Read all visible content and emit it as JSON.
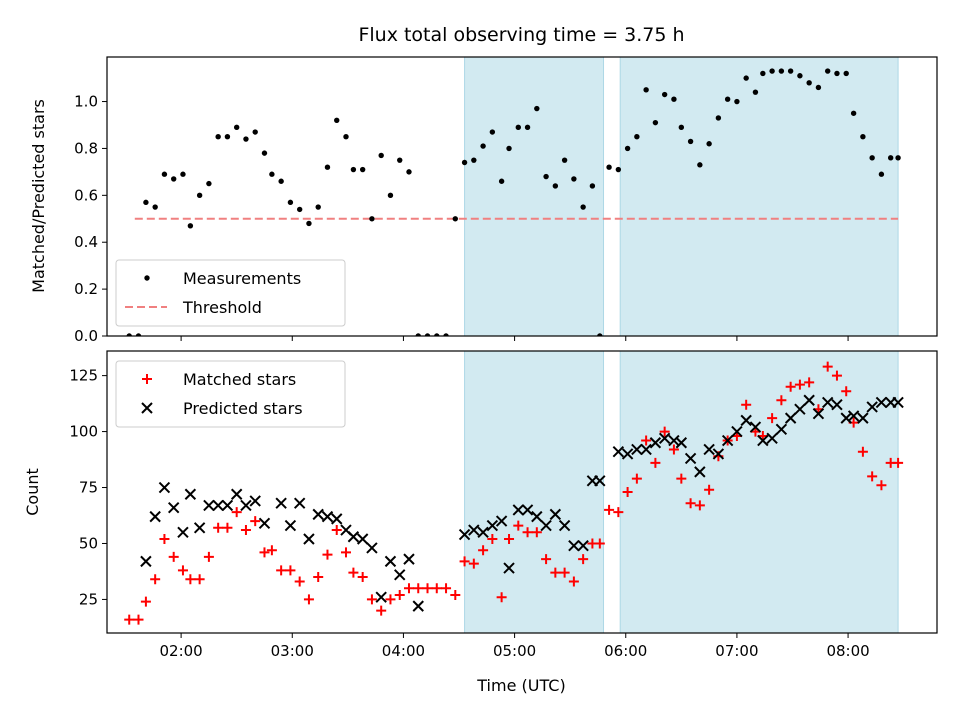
{
  "title": "Flux total observing time = 3.75 h",
  "colors": {
    "shade": "#add8e6",
    "threshold": "#f08080",
    "measurement": "#000000",
    "matched": "#ff0000",
    "predicted": "#000000"
  },
  "chart_data": [
    {
      "type": "scatter",
      "ylabel": "Matched/Predicted stars",
      "ylim": [
        0,
        1.19
      ],
      "yticks": [
        0.0,
        0.2,
        0.4,
        0.6,
        0.8,
        1.0
      ],
      "ytick_labels": [
        "0.0",
        "0.2",
        "0.4",
        "0.6",
        "0.8",
        "1.0"
      ],
      "legend_position": "lower-left",
      "shaded_intervals": [
        [
          "04:33",
          "05:48"
        ],
        [
          "05:57",
          "08:27"
        ]
      ],
      "threshold": {
        "name": "Threshold",
        "value": 0.5,
        "x_range": [
          "01:35",
          "08:27"
        ]
      },
      "series": [
        {
          "name": "Measurements",
          "marker": "dot",
          "x": [
            "01:32",
            "01:37",
            "01:41",
            "01:46",
            "01:51",
            "01:56",
            "02:01",
            "02:05",
            "02:10",
            "02:15",
            "02:20",
            "02:25",
            "02:30",
            "02:35",
            "02:40",
            "02:45",
            "02:49",
            "02:54",
            "02:59",
            "03:04",
            "03:09",
            "03:14",
            "03:19",
            "03:24",
            "03:29",
            "03:33",
            "03:38",
            "03:43",
            "03:48",
            "03:53",
            "03:58",
            "04:03",
            "04:08",
            "04:13",
            "04:18",
            "04:23",
            "04:28",
            "04:33",
            "04:38",
            "04:43",
            "04:48",
            "04:53",
            "04:57",
            "05:02",
            "05:07",
            "05:12",
            "05:17",
            "05:22",
            "05:27",
            "05:32",
            "05:37",
            "05:42",
            "05:46",
            "05:51",
            "05:56",
            "06:01",
            "06:06",
            "06:11",
            "06:16",
            "06:21",
            "06:26",
            "06:30",
            "06:35",
            "06:40",
            "06:45",
            "06:50",
            "06:55",
            "07:00",
            "07:05",
            "07:10",
            "07:14",
            "07:19",
            "07:24",
            "07:29",
            "07:34",
            "07:39",
            "07:44",
            "07:49",
            "07:54",
            "07:59",
            "08:03",
            "08:08",
            "08:13",
            "08:18",
            "08:23",
            "08:27"
          ],
          "y": [
            0.0,
            0.0,
            0.57,
            0.55,
            0.69,
            0.67,
            0.69,
            0.47,
            0.6,
            0.65,
            0.85,
            0.85,
            0.89,
            0.84,
            0.87,
            0.78,
            0.69,
            0.66,
            0.57,
            0.54,
            0.48,
            0.55,
            0.72,
            0.92,
            0.85,
            0.71,
            0.71,
            0.5,
            0.77,
            0.6,
            0.75,
            0.7,
            0.0,
            0.0,
            0.0,
            0.0,
            0.5,
            0.74,
            0.75,
            0.81,
            0.87,
            0.66,
            0.8,
            0.89,
            0.89,
            0.97,
            0.68,
            0.64,
            0.75,
            0.67,
            0.55,
            0.64,
            0.0,
            0.72,
            0.71,
            0.8,
            0.85,
            1.05,
            0.91,
            1.03,
            1.01,
            0.89,
            0.83,
            0.73,
            0.82,
            0.93,
            1.01,
            1.0,
            1.1,
            1.04,
            1.12,
            1.13,
            1.13,
            1.13,
            1.11,
            1.08,
            1.06,
            1.13,
            1.12,
            1.12,
            0.95,
            0.85,
            0.76,
            0.69,
            0.76,
            0.76
          ]
        }
      ]
    },
    {
      "type": "scatter",
      "xlabel": "Time (UTC)",
      "ylabel": "Count",
      "ylim": [
        10,
        136
      ],
      "yticks": [
        25,
        50,
        75,
        100,
        125
      ],
      "ytick_labels": [
        "25",
        "50",
        "75",
        "100",
        "125"
      ],
      "xticks": [
        "02:00",
        "03:00",
        "04:00",
        "05:00",
        "06:00",
        "07:00",
        "08:00"
      ],
      "xlim": [
        "01:20",
        "08:48"
      ],
      "legend_position": "upper-left",
      "shaded_intervals": [
        [
          "04:33",
          "05:48"
        ],
        [
          "05:57",
          "08:27"
        ]
      ],
      "series": [
        {
          "name": "Matched stars",
          "marker": "plus",
          "x": [
            "01:32",
            "01:37",
            "01:41",
            "01:46",
            "01:51",
            "01:56",
            "02:01",
            "02:05",
            "02:10",
            "02:15",
            "02:20",
            "02:25",
            "02:30",
            "02:35",
            "02:40",
            "02:45",
            "02:49",
            "02:54",
            "02:59",
            "03:04",
            "03:09",
            "03:14",
            "03:19",
            "03:24",
            "03:29",
            "03:33",
            "03:38",
            "03:43",
            "03:48",
            "03:53",
            "03:58",
            "04:03",
            "04:08",
            "04:13",
            "04:18",
            "04:23",
            "04:28",
            "04:33",
            "04:38",
            "04:43",
            "04:48",
            "04:53",
            "04:57",
            "05:02",
            "05:07",
            "05:12",
            "05:17",
            "05:22",
            "05:27",
            "05:32",
            "05:37",
            "05:42",
            "05:46",
            "05:51",
            "05:56",
            "06:01",
            "06:06",
            "06:11",
            "06:16",
            "06:21",
            "06:26",
            "06:30",
            "06:35",
            "06:40",
            "06:45",
            "06:50",
            "06:55",
            "07:00",
            "07:05",
            "07:10",
            "07:14",
            "07:19",
            "07:24",
            "07:29",
            "07:34",
            "07:39",
            "07:44",
            "07:49",
            "07:54",
            "07:59",
            "08:03",
            "08:08",
            "08:13",
            "08:18",
            "08:23",
            "08:27"
          ],
          "y": [
            16,
            16,
            24,
            34,
            52,
            44,
            38,
            34,
            34,
            44,
            57,
            57,
            64,
            56,
            60,
            46,
            47,
            38,
            38,
            33,
            25,
            35,
            45,
            56,
            46,
            37,
            35,
            25,
            20,
            25,
            27,
            30,
            30,
            30,
            30,
            30,
            27,
            42,
            41,
            47,
            52,
            26,
            52,
            58,
            55,
            55,
            43,
            37,
            37,
            33,
            43,
            50,
            50,
            65,
            64,
            73,
            79,
            96,
            86,
            100,
            92,
            79,
            68,
            67,
            74,
            89,
            96,
            98,
            112,
            100,
            98,
            106,
            114,
            120,
            121,
            122,
            110,
            129,
            125,
            118,
            104,
            91,
            80,
            76,
            86,
            86
          ]
        },
        {
          "name": "Predicted stars",
          "marker": "x",
          "x": [
            "01:41",
            "01:46",
            "01:51",
            "01:56",
            "02:01",
            "02:10",
            "02:05",
            "02:15",
            "02:20",
            "02:25",
            "02:30",
            "02:35",
            "02:40",
            "02:45",
            "02:54",
            "02:59",
            "03:04",
            "03:14",
            "03:09",
            "03:19",
            "03:24",
            "03:29",
            "03:33",
            "03:38",
            "03:43",
            "03:48",
            "03:53",
            "03:58",
            "04:03",
            "04:08",
            "04:33",
            "04:38",
            "04:43",
            "04:48",
            "04:53",
            "04:57",
            "05:02",
            "05:07",
            "05:12",
            "05:17",
            "05:22",
            "05:27",
            "05:32",
            "05:37",
            "05:42",
            "05:46",
            "05:56",
            "06:01",
            "06:06",
            "06:11",
            "06:16",
            "06:21",
            "06:26",
            "06:30",
            "06:35",
            "06:40",
            "06:45",
            "06:50",
            "06:55",
            "07:00",
            "07:05",
            "07:10",
            "07:14",
            "07:19",
            "07:24",
            "07:29",
            "07:34",
            "07:39",
            "07:44",
            "07:49",
            "07:54",
            "07:59",
            "08:03",
            "08:08",
            "08:13",
            "08:18",
            "08:23",
            "08:27"
          ],
          "y": [
            42,
            62,
            75,
            66,
            55,
            57,
            72,
            67,
            67,
            67,
            72,
            67,
            69,
            59,
            68,
            58,
            68,
            63,
            52,
            62,
            61,
            56,
            53,
            52,
            48,
            26,
            42,
            36,
            43,
            22,
            54,
            56,
            55,
            58,
            60,
            39,
            65,
            65,
            62,
            58,
            63,
            58,
            49,
            49,
            78,
            78,
            91,
            90,
            92,
            92,
            95,
            97,
            96,
            95,
            88,
            82,
            92,
            90,
            96,
            100,
            105,
            102,
            96,
            97,
            101,
            106,
            110,
            114,
            108,
            113,
            112,
            106,
            107,
            106,
            111,
            113,
            113,
            113
          ]
        }
      ]
    }
  ]
}
